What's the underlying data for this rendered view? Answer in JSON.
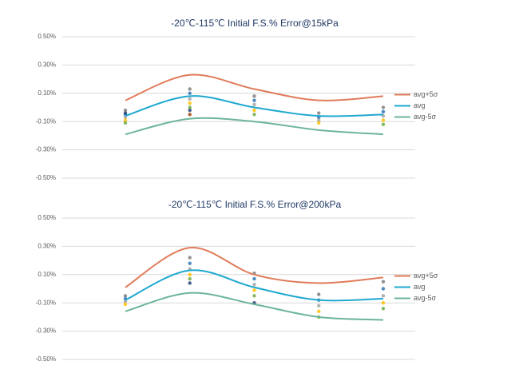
{
  "chart_data": [
    {
      "type": "line",
      "title": "-20℃-115℃ Initial F.S.% Error@15kPa",
      "categories": [
        null,
        null,
        null,
        null,
        null
      ],
      "series": [
        {
          "name": "avg+5σ",
          "color": "#e07b5a",
          "values": [
            0.05,
            0.23,
            0.13,
            0.05,
            0.08
          ]
        },
        {
          "name": "avg",
          "color": "#1fa8d0",
          "values": [
            -0.06,
            0.08,
            0.0,
            -0.06,
            -0.05
          ]
        },
        {
          "name": "avg-5σ",
          "color": "#6db59a",
          "values": [
            -0.19,
            -0.08,
            -0.1,
            -0.16,
            -0.19
          ]
        }
      ],
      "samples": [
        [
          -0.02,
          -0.05,
          -0.07,
          -0.09,
          -0.11,
          -0.04
        ],
        [
          0.13,
          0.1,
          0.06,
          0.03,
          0.0,
          -0.02,
          -0.05
        ],
        [
          0.08,
          0.05,
          0.02,
          -0.02,
          -0.05
        ],
        [
          -0.04,
          -0.07,
          -0.09,
          -0.11
        ],
        [
          0.0,
          -0.03,
          -0.06,
          -0.09,
          -0.12
        ]
      ],
      "sample_colors": [
        "#7f7f7f",
        "#2e75b6",
        "#a5a5a5",
        "#ffc000",
        "#70ad47",
        "#264478",
        "#9e480e"
      ],
      "ylim": [
        -0.5,
        0.5
      ],
      "yticks": [
        {
          "value": 0.5,
          "label": "0.50%"
        },
        {
          "value": 0.3,
          "label": "0.30%"
        },
        {
          "value": 0.1,
          "label": "0.10%"
        },
        {
          "value": -0.1,
          "label": "-0.10%"
        },
        {
          "value": -0.3,
          "label": "-0.30%"
        },
        {
          "value": -0.5,
          "label": "-0.50%"
        }
      ],
      "grid": true,
      "legend": "right"
    },
    {
      "type": "line",
      "title": "-20℃-115℃ Initial F.S.% Error@200kPa",
      "categories": [
        null,
        null,
        null,
        null,
        null
      ],
      "series": [
        {
          "name": "avg+5σ",
          "color": "#e07b5a",
          "values": [
            0.01,
            0.29,
            0.1,
            0.04,
            0.08
          ]
        },
        {
          "name": "avg",
          "color": "#1fa8d0",
          "values": [
            -0.08,
            0.13,
            0.01,
            -0.08,
            -0.07
          ]
        },
        {
          "name": "avg-5σ",
          "color": "#6db59a",
          "values": [
            -0.16,
            -0.03,
            -0.11,
            -0.2,
            -0.22
          ]
        }
      ],
      "samples": [
        [
          -0.05,
          -0.07,
          -0.09,
          -0.11
        ],
        [
          0.22,
          0.18,
          0.14,
          0.1,
          0.07,
          0.04
        ],
        [
          0.11,
          0.07,
          0.03,
          -0.01,
          -0.05,
          -0.1
        ],
        [
          -0.04,
          -0.08,
          -0.12,
          -0.16,
          -0.2
        ],
        [
          0.05,
          0.0,
          -0.05,
          -0.1,
          -0.14
        ]
      ],
      "sample_colors": [
        "#7f7f7f",
        "#2e75b6",
        "#a5a5a5",
        "#ffc000",
        "#70ad47",
        "#264478",
        "#9e480e"
      ],
      "ylim": [
        -0.5,
        0.5
      ],
      "yticks": [
        {
          "value": 0.5,
          "label": "0.50%"
        },
        {
          "value": 0.3,
          "label": "0.30%"
        },
        {
          "value": 0.1,
          "label": "0.10%"
        },
        {
          "value": -0.1,
          "label": "-0.10%"
        },
        {
          "value": -0.3,
          "label": "-0.30%"
        },
        {
          "value": -0.5,
          "label": "-0.50%"
        }
      ],
      "grid": true,
      "legend": "right"
    }
  ]
}
